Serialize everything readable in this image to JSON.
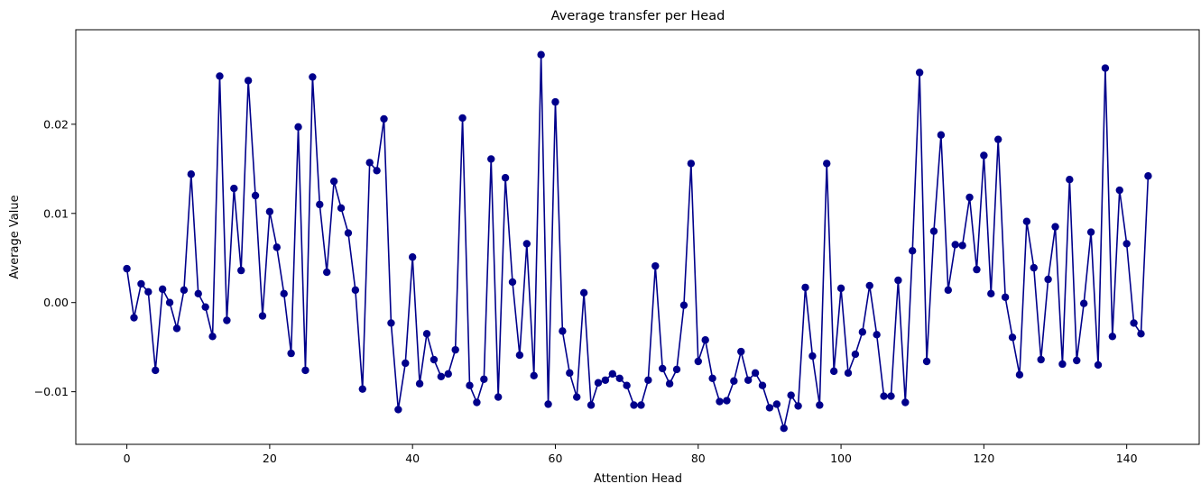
{
  "chart_data": {
    "type": "line",
    "title": "Average transfer per Head",
    "xlabel": "Attention Head",
    "ylabel": "Average Value",
    "xlim": [
      -7.15,
      150.15
    ],
    "ylim": [
      -0.0159,
      0.0306
    ],
    "xticks": [
      0,
      20,
      40,
      60,
      80,
      100,
      120,
      140
    ],
    "yticks": [
      -0.01,
      0.0,
      0.01,
      0.02
    ],
    "ytick_labels": [
      "−0.01",
      "0.00",
      "0.01",
      "0.02"
    ],
    "grid": false,
    "marker": "circle",
    "color": "#00008b",
    "series": [
      {
        "values": [
          0.0038,
          -0.0017,
          0.0021,
          0.0012,
          -0.0076,
          0.0015,
          0.0,
          -0.0029,
          0.0014,
          0.0144,
          0.001,
          -0.0005,
          -0.0038,
          0.0254,
          -0.002,
          0.0128,
          0.0036,
          0.0249,
          0.012,
          -0.0015,
          0.0102,
          0.0062,
          0.001,
          -0.0057,
          0.0197,
          -0.0076,
          0.0253,
          0.011,
          0.0034,
          0.0136,
          0.0106,
          0.0078,
          0.0014,
          -0.0097,
          0.0157,
          0.0148,
          0.0206,
          -0.0023,
          -0.012,
          -0.0068,
          0.0051,
          -0.0091,
          -0.0035,
          -0.0064,
          -0.0083,
          -0.008,
          -0.0053,
          0.0207,
          -0.0093,
          -0.0112,
          -0.0086,
          0.0161,
          -0.0106,
          0.014,
          0.0023,
          -0.0059,
          0.0066,
          -0.0082,
          0.0278,
          -0.0114,
          0.0225,
          -0.0032,
          -0.0079,
          -0.0106,
          0.0011,
          -0.0115,
          -0.009,
          -0.0087,
          -0.008,
          -0.0085,
          -0.0093,
          -0.0115,
          -0.0115,
          -0.0087,
          0.0041,
          -0.0074,
          -0.0091,
          -0.0075,
          -0.0003,
          0.0156,
          -0.0066,
          -0.0042,
          -0.0085,
          -0.0111,
          -0.011,
          -0.0088,
          -0.0055,
          -0.0087,
          -0.0079,
          -0.0093,
          -0.0118,
          -0.0114,
          -0.0141,
          -0.0104,
          -0.0116,
          0.0017,
          -0.006,
          -0.0115,
          0.0156,
          -0.0077,
          0.0016,
          -0.0079,
          -0.0058,
          -0.0033,
          0.0019,
          -0.0036,
          -0.0105,
          -0.0105,
          0.0025,
          -0.0112,
          0.0058,
          0.0258,
          -0.0066,
          0.008,
          0.0188,
          0.0014,
          0.0065,
          0.0064,
          0.0118,
          0.0037,
          0.0165,
          0.001,
          0.0183,
          0.0006,
          -0.0039,
          -0.0081,
          0.0091,
          0.0039,
          -0.0064,
          0.0026,
          0.0085,
          -0.0069,
          0.0138,
          -0.0065,
          -0.0001,
          0.0079,
          -0.007,
          0.0263,
          -0.0038,
          0.0126,
          0.0066,
          -0.0023,
          -0.0035,
          0.0142
        ]
      }
    ]
  }
}
